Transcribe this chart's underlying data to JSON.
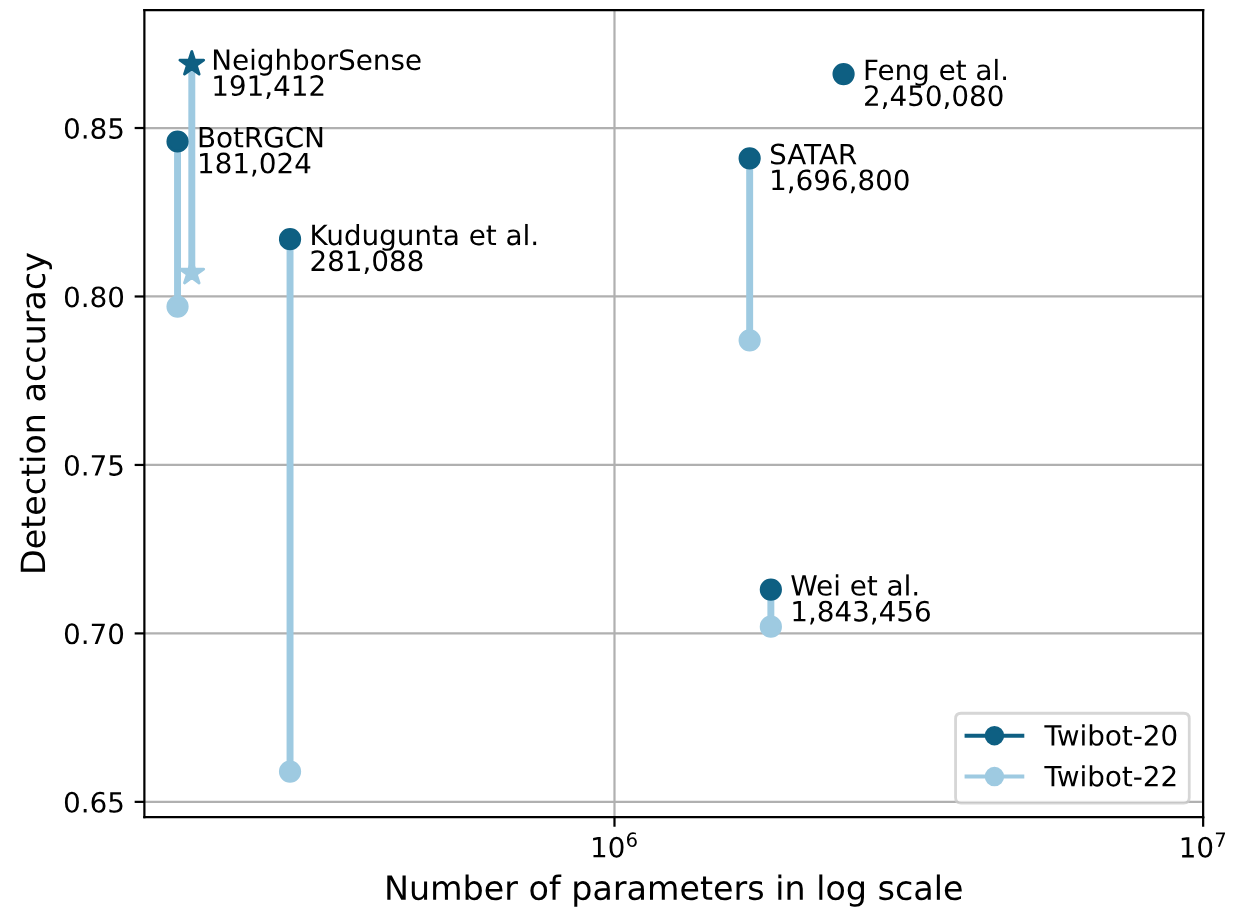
{
  "chart_data": {
    "type": "scatter",
    "xlabel": "Number of parameters in log scale",
    "ylabel": "Detection accuracy",
    "x": [
      191412,
      181024,
      281088,
      1696800,
      2450080,
      1843456
    ],
    "series": [
      {
        "name": "Twibot-20",
        "color": "#0e5f82",
        "marker": "circle",
        "values": [
          null,
          0.846,
          0.817,
          0.841,
          0.866,
          0.713
        ]
      },
      {
        "name": "Twibot-22",
        "color": "#9ecae1",
        "marker": "circle",
        "values": [
          null,
          0.797,
          0.659,
          0.787,
          null,
          0.702
        ]
      },
      {
        "color": "#0e5f82",
        "marker": "star",
        "values": [
          0.869,
          null,
          null,
          null,
          null,
          null
        ]
      },
      {
        "color": "#9ecae1",
        "marker": "star",
        "values": [
          0.807,
          null,
          null,
          null,
          null,
          null
        ]
      }
    ],
    "log": "x",
    "xlim": [
      159000,
      10000000
    ],
    "xticks": [
      {
        "value": 1000000,
        "label": "10$^{6}$"
      },
      {
        "value": 10000000,
        "label": "10$^{7}$"
      }
    ],
    "ylim": [
      0.6455,
      0.885
    ],
    "yticks": [
      {
        "value": 0.65,
        "label": "0.65"
      },
      {
        "value": 0.7,
        "label": "0.70"
      },
      {
        "value": 0.75,
        "label": "0.75"
      },
      {
        "value": 0.8,
        "label": "0.80"
      },
      {
        "value": 0.85,
        "label": "0.85"
      }
    ],
    "grid": true,
    "legend": "bottom right",
    "annotations": [
      {
        "text": "NeighborSense\n191,412",
        "x": 191412,
        "y": 0.869
      },
      {
        "text": "BotRGCN\n181,024",
        "x": 181024,
        "y": 0.846
      },
      {
        "text": "Kudugunta et al.\n281,088",
        "x": 281088,
        "y": 0.817
      },
      {
        "text": "SATAR\n1,696,800",
        "x": 1696800,
        "y": 0.841
      },
      {
        "text": "Feng et al.\n2,450,080",
        "x": 2450080,
        "y": 0.866
      },
      {
        "text": "Wei et al.\n1,843,456",
        "x": 1843456,
        "y": 0.713
      }
    ]
  }
}
